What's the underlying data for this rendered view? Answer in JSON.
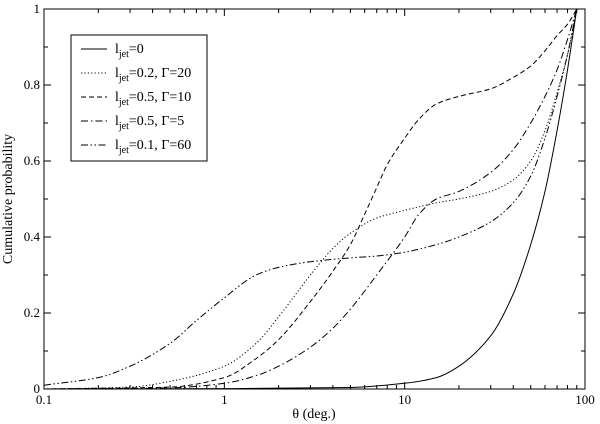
{
  "chart_data": {
    "type": "line",
    "xlabel": "θ (deg.)",
    "ylabel": "Cumulative probability",
    "x_scale": "log",
    "xlim": [
      0.1,
      100
    ],
    "ylim": [
      0,
      1
    ],
    "x_ticks": [
      "0.1",
      "1",
      "10",
      "100"
    ],
    "y_ticks": [
      "0",
      "0.2",
      "0.4",
      "0.6",
      "0.8",
      "1"
    ],
    "grid": false,
    "legend_position": "top-left",
    "series": [
      {
        "name": "l_jet=0",
        "legend": {
          "main": "l",
          "sub": "jet",
          "rest": "=0"
        },
        "dash": "solid",
        "x": [
          0.1,
          1,
          5,
          10,
          15,
          20,
          30,
          40,
          50,
          60,
          70,
          80,
          90
        ],
        "y": [
          0,
          0.001,
          0.004,
          0.015,
          0.03,
          0.06,
          0.14,
          0.25,
          0.38,
          0.52,
          0.68,
          0.84,
          1.0
        ]
      },
      {
        "name": "l_jet=0.2, Γ=20",
        "legend": {
          "main": "l",
          "sub": "jet",
          "rest": "=0.2, Γ=20"
        },
        "dash": "dotted",
        "x": [
          0.1,
          0.3,
          0.5,
          1,
          1.5,
          2,
          3,
          4,
          5,
          7,
          10,
          15,
          20,
          30,
          40,
          50,
          60,
          70,
          80,
          90
        ],
        "y": [
          0,
          0.005,
          0.02,
          0.06,
          0.12,
          0.19,
          0.3,
          0.37,
          0.41,
          0.45,
          0.47,
          0.49,
          0.5,
          0.52,
          0.55,
          0.6,
          0.68,
          0.78,
          0.88,
          1.0
        ]
      },
      {
        "name": "l_jet=0.5, Γ=10",
        "legend": {
          "main": "l",
          "sub": "jet",
          "rest": "=0.5, Γ=10"
        },
        "dash": "dashed",
        "x": [
          0.1,
          0.5,
          1,
          1.5,
          2,
          3,
          4,
          5,
          6,
          7,
          8,
          10,
          12,
          15,
          20,
          30,
          40,
          50,
          60,
          70,
          80,
          90
        ],
        "y": [
          0,
          0.005,
          0.03,
          0.08,
          0.13,
          0.23,
          0.31,
          0.38,
          0.46,
          0.53,
          0.59,
          0.66,
          0.71,
          0.75,
          0.77,
          0.79,
          0.82,
          0.85,
          0.89,
          0.93,
          0.96,
          1.0
        ]
      },
      {
        "name": "l_jet=0.5, Γ=5",
        "legend": {
          "main": "l",
          "sub": "jet",
          "rest": "=0.5, Γ=5"
        },
        "dash": "dashdot",
        "x": [
          0.1,
          0.5,
          1,
          1.5,
          2,
          3,
          4,
          5,
          7,
          10,
          12,
          15,
          20,
          30,
          40,
          50,
          60,
          70,
          80,
          90
        ],
        "y": [
          0,
          0.003,
          0.015,
          0.035,
          0.06,
          0.11,
          0.16,
          0.21,
          0.3,
          0.4,
          0.46,
          0.5,
          0.52,
          0.57,
          0.63,
          0.7,
          0.77,
          0.84,
          0.92,
          1.0
        ]
      },
      {
        "name": "l_jet=0.1, Γ=60",
        "legend": {
          "main": "l",
          "sub": "jet",
          "rest": "=0.1, Γ=60"
        },
        "dash": "dashdotdot",
        "x": [
          0.1,
          0.2,
          0.3,
          0.5,
          0.7,
          1,
          1.5,
          2,
          3,
          5,
          7,
          10,
          15,
          20,
          30,
          40,
          50,
          60,
          70,
          80,
          90
        ],
        "y": [
          0.01,
          0.03,
          0.06,
          0.12,
          0.18,
          0.24,
          0.3,
          0.32,
          0.335,
          0.345,
          0.35,
          0.36,
          0.38,
          0.4,
          0.44,
          0.49,
          0.56,
          0.66,
          0.77,
          0.88,
          1.0
        ]
      }
    ]
  }
}
